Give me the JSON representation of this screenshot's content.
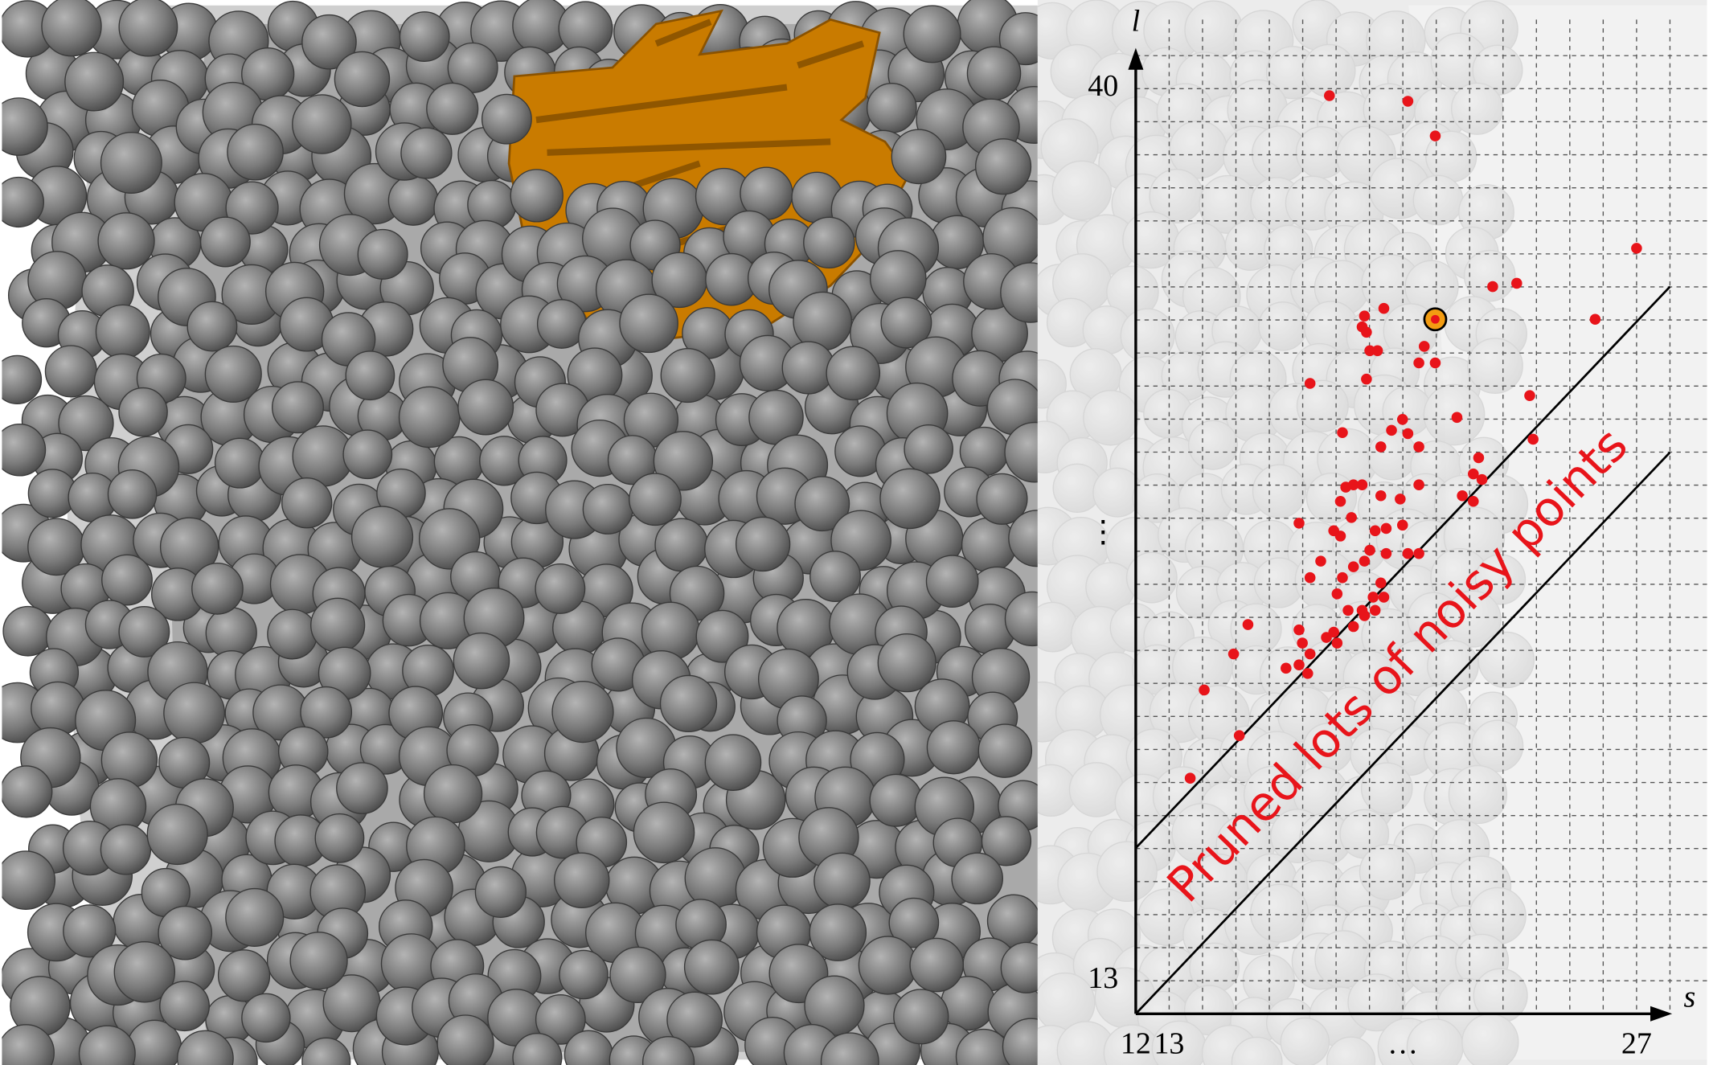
{
  "chart_data": {
    "type": "scatter",
    "xlabel": "s",
    "ylabel": "l",
    "annotation": "Pruned lots of noisy points",
    "xlim": [
      12,
      28
    ],
    "ylim": [
      12,
      41.2
    ],
    "xticks": [
      12,
      13,
      {
        "value": 20,
        "label": "…"
      },
      27
    ],
    "yticks": [
      13,
      {
        "value": 26.5,
        "label": "⋮"
      },
      40
    ],
    "grid": true,
    "series": [
      {
        "color": "#e8141a",
        "x": [
          17.8,
          20.15,
          20.97,
          27.0,
          22.69,
          23.41,
          25.76,
          19.43,
          18.85,
          18.78,
          18.91,
          19.01,
          19.24,
          20.64,
          20.97,
          20.48,
          17.22,
          18.91,
          23.8,
          21.62,
          19.99,
          18.19,
          19.66,
          20.15,
          19.34,
          20.48,
          23.9,
          22.27,
          22.11,
          22.37,
          20.48,
          18.52,
          18.78,
          18.29,
          18.13,
          19.34,
          19.92,
          21.78,
          22.11,
          16.89,
          17.93,
          18.13,
          18.46,
          19.5,
          19.99,
          19.17,
          20.15,
          20.48,
          19.01,
          19.5,
          18.85,
          18.52,
          17.54,
          17.22,
          18.19,
          19.34,
          18.03,
          19.11,
          19.43,
          18.36,
          18.78,
          19.17,
          18.85,
          16.89,
          17.93,
          15.36,
          18.52,
          16.99,
          17.71,
          18.03,
          14.93,
          17.22,
          16.89,
          17.15,
          16.5,
          14.05,
          15.1,
          13.63
        ],
        "values": [
          39.79,
          39.62,
          38.57,
          35.17,
          34.01,
          34.11,
          33.02,
          33.35,
          33.12,
          32.79,
          32.63,
          32.07,
          32.07,
          32.2,
          31.7,
          31.7,
          31.08,
          31.21,
          30.71,
          30.05,
          29.99,
          29.59,
          29.66,
          29.56,
          29.16,
          29.16,
          29.39,
          28.83,
          28.34,
          28.17,
          28.01,
          28.01,
          28.01,
          27.94,
          27.51,
          27.68,
          27.58,
          27.68,
          27.51,
          26.85,
          26.62,
          26.46,
          27.02,
          26.69,
          26.79,
          26.62,
          25.93,
          25.93,
          26.03,
          25.93,
          25.7,
          25.53,
          25.7,
          25.2,
          25.2,
          25.04,
          24.71,
          24.61,
          24.61,
          24.21,
          24.21,
          24.21,
          24.05,
          23.62,
          23.55,
          23.78,
          23.72,
          23.22,
          23.39,
          23.22,
          22.89,
          22.89,
          22.56,
          22.3,
          22.46,
          21.8,
          20.42,
          19.13
        ]
      },
      {
        "color": "#f39c12",
        "x": [
          20.97
        ],
        "values": [
          33.02
        ]
      }
    ]
  }
}
